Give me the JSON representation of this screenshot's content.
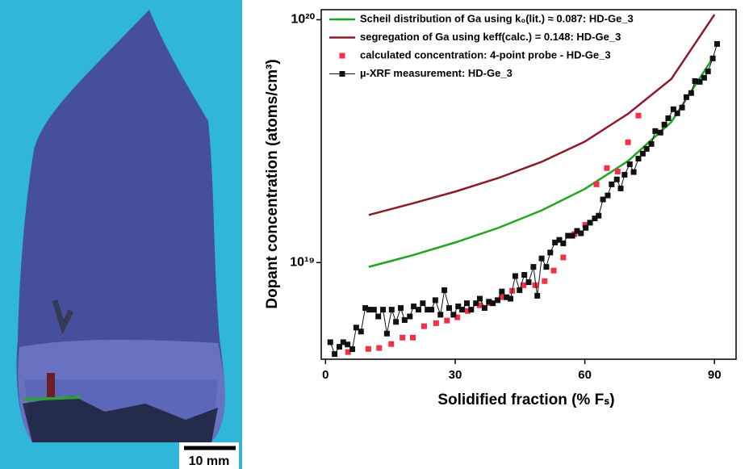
{
  "image": {
    "scale_bar": "10 mm"
  },
  "chart_data": {
    "type": "line",
    "xlabel": "Solidified fraction (% Fₛ)",
    "ylabel": "Dopant concentration (atoms/cm³)",
    "xlim": [
      -1,
      95
    ],
    "xticks": [
      0,
      30,
      60,
      90
    ],
    "ylim": [
      4e+18,
      1.1e+20
    ],
    "log_y": true,
    "yticks": [
      {
        "value": 1e+19,
        "label": "10¹⁹"
      },
      {
        "value": 1e+20,
        "label": "10²⁰"
      }
    ],
    "legend": "upper left",
    "series": [
      {
        "name": "Scheil distribution of Ga using k₀(lit.) ≈ 0.087: HD-Ge_3",
        "color": "#22a422",
        "line": true,
        "marker": "none",
        "x": [
          10,
          20,
          30,
          40,
          50,
          60,
          70,
          80,
          90
        ],
        "values": [
          9.6e+18,
          1.07e+19,
          1.21e+19,
          1.39e+19,
          1.64e+19,
          2.01e+19,
          2.62e+19,
          3.79e+19,
          7.13e+19
        ]
      },
      {
        "name": "segregation of Ga using keff(calc.) = 0.148: HD-Ge_3",
        "color": "#8b1a2b",
        "line": true,
        "marker": "none",
        "x": [
          10,
          20,
          30,
          40,
          50,
          60,
          70,
          80,
          90
        ],
        "values": [
          1.57e+19,
          1.75e+19,
          1.96e+19,
          2.23e+19,
          2.6e+19,
          3.15e+19,
          4.1e+19,
          5.7e+19,
          1.05e+20
        ]
      },
      {
        "name": "calculated concentration: 4-point probe - HD-Ge_3",
        "color": "#f0314a",
        "line": false,
        "marker": "square",
        "x": [
          5.2,
          9.9,
          12.4,
          15.2,
          17.8,
          20.2,
          22.8,
          25.6,
          28.1,
          30.5,
          32.9,
          35.7,
          38.0,
          40.8,
          43.2,
          45.8,
          48.5,
          50.7,
          52.8,
          55.0,
          57.6,
          60.1,
          62.7,
          65.1,
          67.6,
          70.0,
          72.4
        ],
        "values": [
          4.28e+18,
          4.41e+18,
          4.45e+18,
          4.62e+18,
          4.91e+18,
          4.91e+18,
          5.47e+18,
          5.63e+18,
          5.77e+18,
          5.95e+18,
          6.32e+18,
          6.67e+18,
          6.82e+18,
          7.2e+18,
          7.65e+18,
          8.07e+18,
          8.07e+18,
          8.39e+18,
          9.27e+18,
          1.05e+19,
          1.31e+19,
          1.43e+19,
          2.1e+19,
          2.45e+19,
          2.37e+19,
          3.13e+19,
          4.03e+19
        ]
      },
      {
        "name": "µ-XRF measurement: HD-Ge_3",
        "color": "#111111",
        "line": true,
        "marker": "square",
        "x": [
          1.1,
          2.1,
          3.2,
          4.1,
          5.1,
          6.2,
          7.1,
          8.2,
          9.2,
          10.1,
          11.2,
          12.2,
          13.3,
          14.2,
          15.3,
          16.3,
          17.4,
          18.3,
          19.5,
          20.4,
          21.5,
          22.5,
          23.6,
          24.5,
          25.4,
          26.6,
          27.5,
          28.6,
          29.6,
          30.7,
          31.6,
          32.7,
          33.7,
          34.8,
          35.7,
          36.8,
          37.8,
          38.7,
          39.8,
          40.8,
          41.9,
          42.8,
          43.9,
          44.9,
          46.0,
          47.0,
          48.1,
          49.0,
          50.0,
          51.1,
          52.0,
          53.1,
          54.1,
          55.0,
          56.1,
          57.1,
          58.2,
          59.1,
          60.2,
          61.2,
          62.3,
          63.2,
          64.2,
          65.3,
          66.2,
          67.4,
          68.3,
          69.2,
          70.4,
          71.3,
          72.4,
          73.4,
          74.3,
          75.4,
          76.3,
          77.5,
          78.4,
          79.3,
          80.5,
          81.4,
          82.5,
          83.5,
          84.6,
          85.5,
          86.6,
          87.6,
          88.5,
          89.6,
          90.6
        ],
        "values": [
          4.7e+18,
          4.2e+18,
          4.5e+18,
          4.7e+18,
          4.6e+18,
          4.4e+18,
          5.4e+18,
          5.2e+18,
          6.5e+18,
          6.4e+18,
          6.4e+18,
          6e+18,
          6.4e+18,
          5.1e+18,
          6.4e+18,
          5.7e+18,
          6.5e+18,
          5.8e+18,
          6e+18,
          6.6e+18,
          6.4e+18,
          6.8e+18,
          6.4e+18,
          6.4e+18,
          7e+18,
          6.1e+18,
          7.7e+18,
          6.5e+18,
          6.1e+18,
          6.6e+18,
          6.4e+18,
          6.8e+18,
          6.4e+18,
          6.8e+18,
          7.1e+18,
          6.5e+18,
          6.9e+18,
          6.8e+18,
          7e+18,
          7.6e+18,
          7.2e+18,
          7.1e+18,
          8.8e+18,
          7.7e+18,
          8.9e+18,
          8.3e+18,
          9.6e+18,
          7.3e+18,
          1.04e+19,
          9.6e+18,
          1.1e+19,
          1.21e+19,
          1.24e+19,
          1.2e+19,
          1.29e+19,
          1.29e+19,
          1.35e+19,
          1.32e+19,
          1.39e+19,
          1.46e+19,
          1.52e+19,
          1.56e+19,
          1.82e+19,
          1.89e+19,
          2.1e+19,
          2.2e+19,
          2.02e+19,
          2.3e+19,
          2.54e+19,
          2.36e+19,
          2.68e+19,
          2.81e+19,
          2.94e+19,
          3.08e+19,
          3.48e+19,
          3.43e+19,
          3.7e+19,
          3.93e+19,
          4.28e+19,
          4.12e+19,
          4.35e+19,
          4.8e+19,
          4.99e+19,
          5.59e+19,
          5.55e+19,
          5.77e+19,
          6.13e+19,
          6.93e+19,
          7.95e+19
        ]
      }
    ]
  }
}
